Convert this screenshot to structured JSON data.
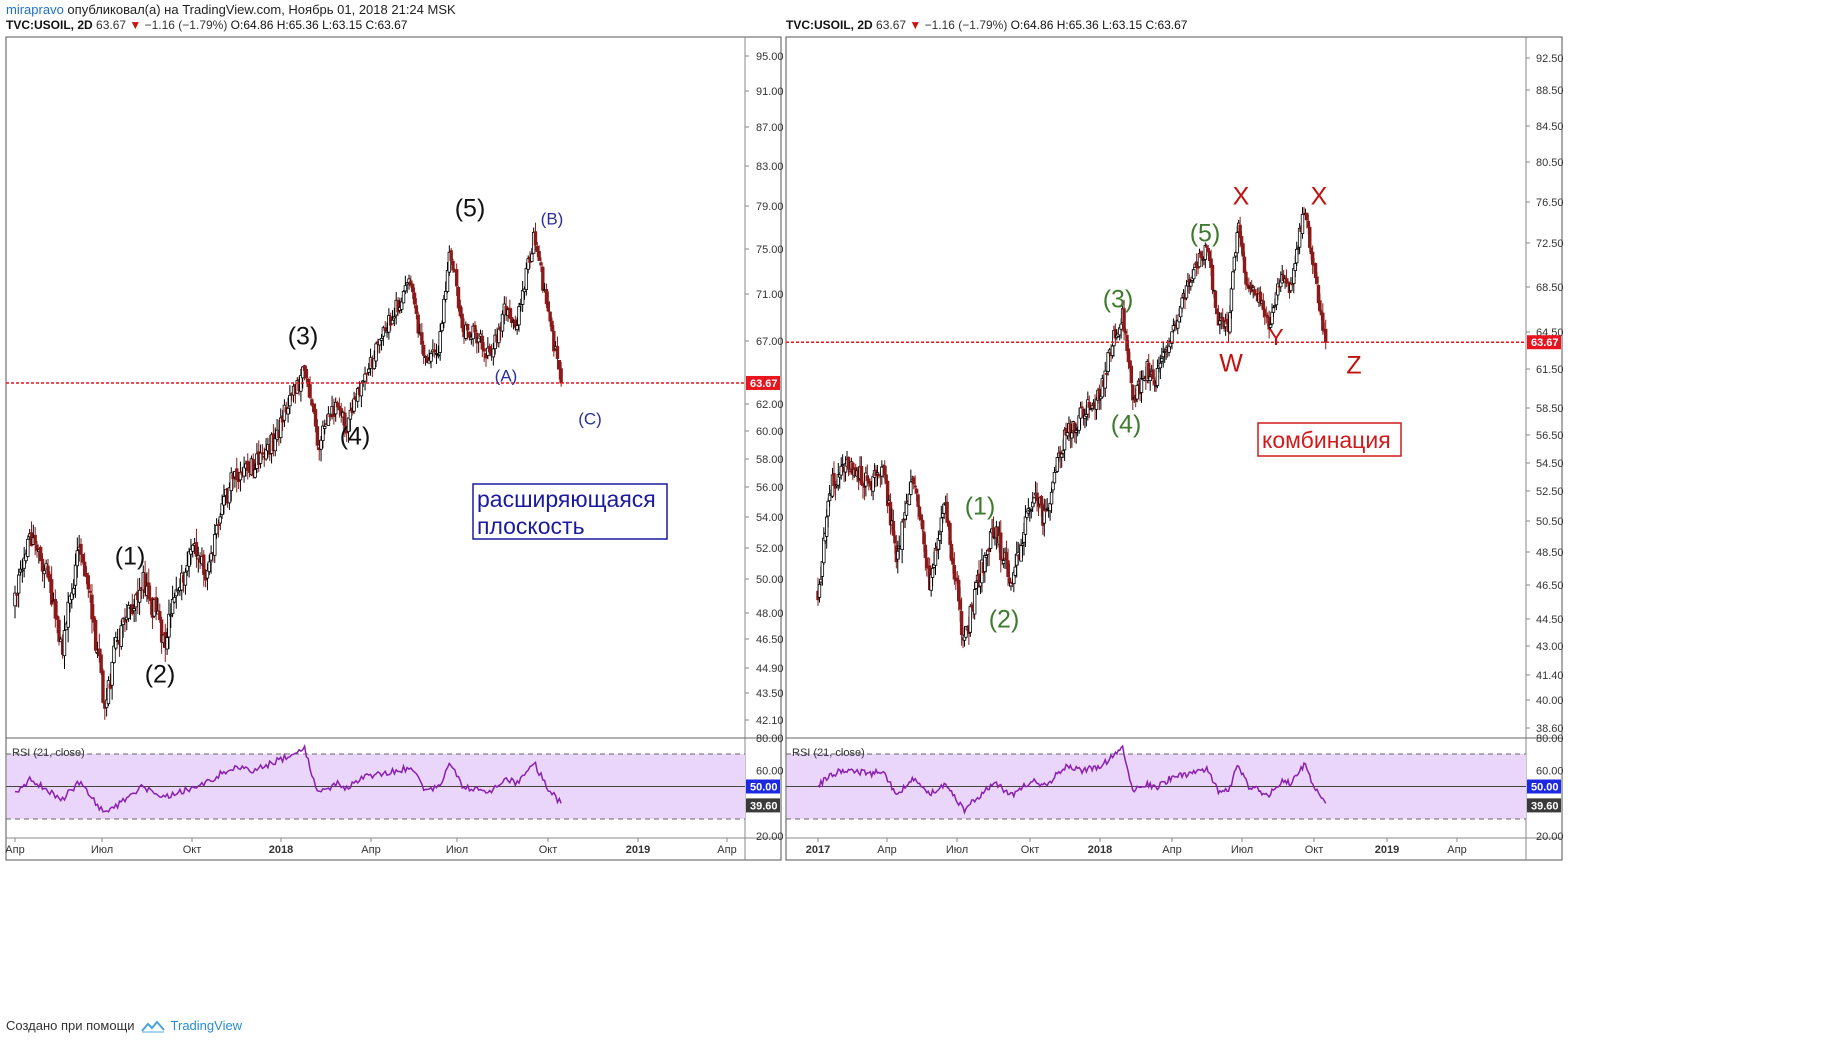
{
  "header": {
    "author": "mirapravo",
    "published": "опубликовал(а) на TradingView.com, Ноябрь 01, 2018 21:24 MSK"
  },
  "footer": {
    "created_with": "Создано при помощи",
    "brand": "TradingView"
  },
  "colors": {
    "candle_up": "#000000",
    "candle_down": "#8b1a1a",
    "price_line": "#e8141e",
    "rsi_line": "#8a1fb0",
    "rsi_band": "#ead6fb",
    "wave_black": "#111111",
    "wave_blue": "#2b2f9a",
    "wave_green": "#3e7b2e",
    "wave_red": "#c1120f",
    "box_blue": "#1a1aa0",
    "box_red": "#d11a1a",
    "rsi_badge_mid": "#1d29e0",
    "rsi_badge_val": "#3a3a3a",
    "price_badge": "#e8141e"
  },
  "chart_data": [
    {
      "type": "candlestick",
      "symbol_line": {
        "symbol": "TVC:USOIL, 2D",
        "last": "63.67",
        "change": "−1.16 (−1.79%)",
        "open": "O:64.86",
        "high": "H:65.36",
        "low": "L:63.15",
        "close": "C:63.67"
      },
      "y_ticks": [
        "95.00",
        "91.00",
        "87.00",
        "83.00",
        "79.00",
        "75.00",
        "71.00",
        "67.00",
        "62.00",
        "60.00",
        "58.00",
        "56.00",
        "54.00",
        "52.00",
        "50.00",
        "48.00",
        "46.50",
        "44.90",
        "43.50",
        "42.10"
      ],
      "x_ticks": [
        "Апр",
        "Июл",
        "Окт",
        "2018",
        "Апр",
        "Июл",
        "Окт",
        "2019",
        "Апр"
      ],
      "current_price": "63.67",
      "ylim": [
        41.0,
        97.0
      ],
      "x_axis": {
        "start": "2017-03-15",
        "end": "2019-05-01",
        "start_label": "Апр 2017",
        "end_label": "Апр 2019"
      },
      "price_path": [
        [
          "2017-03-15",
          48.5
        ],
        [
          "2017-04-01",
          53.0
        ],
        [
          "2017-04-20",
          50.0
        ],
        [
          "2017-05-05",
          45.5
        ],
        [
          "2017-05-25",
          52.5
        ],
        [
          "2017-06-21",
          42.8
        ],
        [
          "2017-07-05",
          46.5
        ],
        [
          "2017-08-01",
          50.0
        ],
        [
          "2017-08-25",
          46.5
        ],
        [
          "2017-09-25",
          52.3
        ],
        [
          "2017-10-10",
          50.5
        ],
        [
          "2017-11-06",
          56.5
        ],
        [
          "2017-11-30",
          57.5
        ],
        [
          "2017-12-25",
          59.5
        ],
        [
          "2018-01-05",
          62.0
        ],
        [
          "2018-01-25",
          64.5
        ],
        [
          "2018-02-09",
          59.0
        ],
        [
          "2018-02-28",
          62.0
        ],
        [
          "2018-03-12",
          60.5
        ],
        [
          "2018-04-01",
          64.0
        ],
        [
          "2018-04-25",
          68.5
        ],
        [
          "2018-05-10",
          70.5
        ],
        [
          "2018-05-20",
          71.8
        ],
        [
          "2018-06-05",
          65.5
        ],
        [
          "2018-06-20",
          66.0
        ],
        [
          "2018-07-03",
          75.0
        ],
        [
          "2018-07-17",
          68.0
        ],
        [
          "2018-08-01",
          67.5
        ],
        [
          "2018-08-16",
          65.5
        ],
        [
          "2018-08-31",
          69.5
        ],
        [
          "2018-09-14",
          68.5
        ],
        [
          "2018-10-03",
          76.5
        ],
        [
          "2018-10-18",
          69.0
        ],
        [
          "2018-11-01",
          63.67
        ]
      ],
      "wave_labels": [
        {
          "text": "(1)",
          "group": "black"
        },
        {
          "text": "(2)",
          "group": "black"
        },
        {
          "text": "(3)",
          "group": "black"
        },
        {
          "text": "(4)",
          "group": "black"
        },
        {
          "text": "(5)",
          "group": "black"
        },
        {
          "text": "(A)",
          "group": "blue"
        },
        {
          "text": "(B)",
          "group": "blue"
        },
        {
          "text": "(C)",
          "group": "blue"
        }
      ],
      "annotation": "расширяющаяся\nплоскость",
      "rsi": {
        "label": "RSI (21, close)",
        "y_ticks": [
          "80.00",
          "60.00",
          "20.00"
        ],
        "mid_badge": "50.00",
        "value_badge": "39.60",
        "ylim": [
          20,
          80
        ],
        "bands": [
          30,
          70
        ],
        "mid": 50,
        "path": [
          [
            "2017-03-15",
            45
          ],
          [
            "2017-04-01",
            55
          ],
          [
            "2017-05-05",
            42
          ],
          [
            "2017-05-25",
            53
          ],
          [
            "2017-06-21",
            33
          ],
          [
            "2017-08-01",
            50
          ],
          [
            "2017-08-25",
            44
          ],
          [
            "2017-10-10",
            52
          ],
          [
            "2017-11-06",
            62
          ],
          [
            "2017-11-30",
            60
          ],
          [
            "2018-01-05",
            68
          ],
          [
            "2018-01-25",
            73
          ],
          [
            "2018-02-09",
            45
          ],
          [
            "2018-02-28",
            52
          ],
          [
            "2018-03-12",
            49
          ],
          [
            "2018-04-01",
            56
          ],
          [
            "2018-05-10",
            60
          ],
          [
            "2018-05-20",
            62
          ],
          [
            "2018-06-05",
            48
          ],
          [
            "2018-06-20",
            49
          ],
          [
            "2018-07-03",
            64
          ],
          [
            "2018-07-17",
            50
          ],
          [
            "2018-08-16",
            46
          ],
          [
            "2018-08-31",
            55
          ],
          [
            "2018-09-14",
            52
          ],
          [
            "2018-10-03",
            64
          ],
          [
            "2018-10-18",
            48
          ],
          [
            "2018-11-01",
            39.6
          ]
        ]
      }
    },
    {
      "type": "candlestick",
      "symbol_line": {
        "symbol": "TVC:USOIL, 2D",
        "last": "63.67",
        "change": "−1.16 (−1.79%)",
        "open": "O:64.86",
        "high": "H:65.36",
        "low": "L:63.15",
        "close": "C:63.67"
      },
      "y_ticks": [
        "92.50",
        "88.50",
        "84.50",
        "80.50",
        "76.50",
        "72.50",
        "68.50",
        "64.50",
        "61.50",
        "58.50",
        "56.50",
        "54.50",
        "52.50",
        "50.50",
        "48.50",
        "46.50",
        "44.50",
        "43.00",
        "41.40",
        "40.00",
        "38.60"
      ],
      "x_ticks": [
        "2017",
        "Апр",
        "Июл",
        "Окт",
        "2018",
        "Апр",
        "Июл",
        "Окт",
        "2019",
        "Апр"
      ],
      "current_price": "63.67",
      "ylim": [
        37.5,
        95.0
      ],
      "x_axis": {
        "start": "2016-12-01",
        "end": "2019-05-01",
        "start_label": "2017",
        "end_label": "Апр 2019"
      },
      "price_path": [
        [
          "2016-12-01",
          46.0
        ],
        [
          "2016-12-20",
          53.0
        ],
        [
          "2017-01-15",
          54.5
        ],
        [
          "2017-02-10",
          53.0
        ],
        [
          "2017-03-01",
          53.8
        ],
        [
          "2017-03-20",
          48.0
        ],
        [
          "2017-04-10",
          53.5
        ],
        [
          "2017-05-05",
          46.5
        ],
        [
          "2017-05-25",
          51.5
        ],
        [
          "2017-06-21",
          43.0
        ],
        [
          "2017-07-05",
          46.0
        ],
        [
          "2017-08-01",
          50.0
        ],
        [
          "2017-08-25",
          46.5
        ],
        [
          "2017-09-25",
          52.5
        ],
        [
          "2017-10-10",
          50.5
        ],
        [
          "2017-11-06",
          56.5
        ],
        [
          "2017-12-01",
          58.0
        ],
        [
          "2017-12-25",
          59.5
        ],
        [
          "2018-01-10",
          63.5
        ],
        [
          "2018-01-25",
          66.0
        ],
        [
          "2018-02-09",
          59.0
        ],
        [
          "2018-02-28",
          61.5
        ],
        [
          "2018-03-12",
          60.5
        ],
        [
          "2018-04-01",
          64.0
        ],
        [
          "2018-04-25",
          68.5
        ],
        [
          "2018-05-15",
          71.5
        ],
        [
          "2018-05-22",
          72.0
        ],
        [
          "2018-06-05",
          65.5
        ],
        [
          "2018-06-20",
          65.0
        ],
        [
          "2018-07-03",
          74.5
        ],
        [
          "2018-07-17",
          68.0
        ],
        [
          "2018-08-01",
          67.5
        ],
        [
          "2018-08-16",
          64.8
        ],
        [
          "2018-08-31",
          69.5
        ],
        [
          "2018-09-14",
          68.5
        ],
        [
          "2018-10-03",
          76.0
        ],
        [
          "2018-10-18",
          69.0
        ],
        [
          "2018-11-01",
          63.67
        ]
      ],
      "wave_labels": [
        {
          "text": "(1)",
          "group": "green"
        },
        {
          "text": "(2)",
          "group": "green"
        },
        {
          "text": "(3)",
          "group": "green"
        },
        {
          "text": "(4)",
          "group": "green"
        },
        {
          "text": "(5)",
          "group": "green"
        },
        {
          "text": "X",
          "group": "red"
        },
        {
          "text": "X",
          "group": "red"
        },
        {
          "text": "W",
          "group": "red"
        },
        {
          "text": "Y",
          "group": "red"
        },
        {
          "text": "Z",
          "group": "red"
        }
      ],
      "annotation": "комбинация",
      "rsi": {
        "label": "RSI (21, close)",
        "y_ticks": [
          "80.00",
          "60.00",
          "20.00"
        ],
        "mid_badge": "50.00",
        "value_badge": "39.60",
        "ylim": [
          20,
          80
        ],
        "bands": [
          30,
          70
        ],
        "mid": 50,
        "path": [
          [
            "2016-12-01",
            50
          ],
          [
            "2016-12-20",
            58
          ],
          [
            "2017-01-15",
            60
          ],
          [
            "2017-02-10",
            58
          ],
          [
            "2017-03-01",
            59
          ],
          [
            "2017-03-20",
            44
          ],
          [
            "2017-04-10",
            55
          ],
          [
            "2017-05-05",
            45
          ],
          [
            "2017-05-25",
            51
          ],
          [
            "2017-06-21",
            35
          ],
          [
            "2017-07-05",
            42
          ],
          [
            "2017-08-01",
            52
          ],
          [
            "2017-08-25",
            45
          ],
          [
            "2017-09-25",
            54
          ],
          [
            "2017-10-10",
            50
          ],
          [
            "2017-11-06",
            62
          ],
          [
            "2017-12-01",
            60
          ],
          [
            "2017-12-25",
            62
          ],
          [
            "2018-01-10",
            68
          ],
          [
            "2018-01-25",
            73
          ],
          [
            "2018-02-09",
            47
          ],
          [
            "2018-02-28",
            52
          ],
          [
            "2018-03-12",
            49
          ],
          [
            "2018-04-01",
            55
          ],
          [
            "2018-05-15",
            60
          ],
          [
            "2018-05-22",
            61
          ],
          [
            "2018-06-05",
            47
          ],
          [
            "2018-06-20",
            47
          ],
          [
            "2018-07-03",
            64
          ],
          [
            "2018-07-17",
            50
          ],
          [
            "2018-08-16",
            45
          ],
          [
            "2018-08-31",
            53
          ],
          [
            "2018-09-14",
            52
          ],
          [
            "2018-10-03",
            64
          ],
          [
            "2018-10-18",
            48
          ],
          [
            "2018-11-01",
            39.6
          ]
        ]
      }
    }
  ]
}
